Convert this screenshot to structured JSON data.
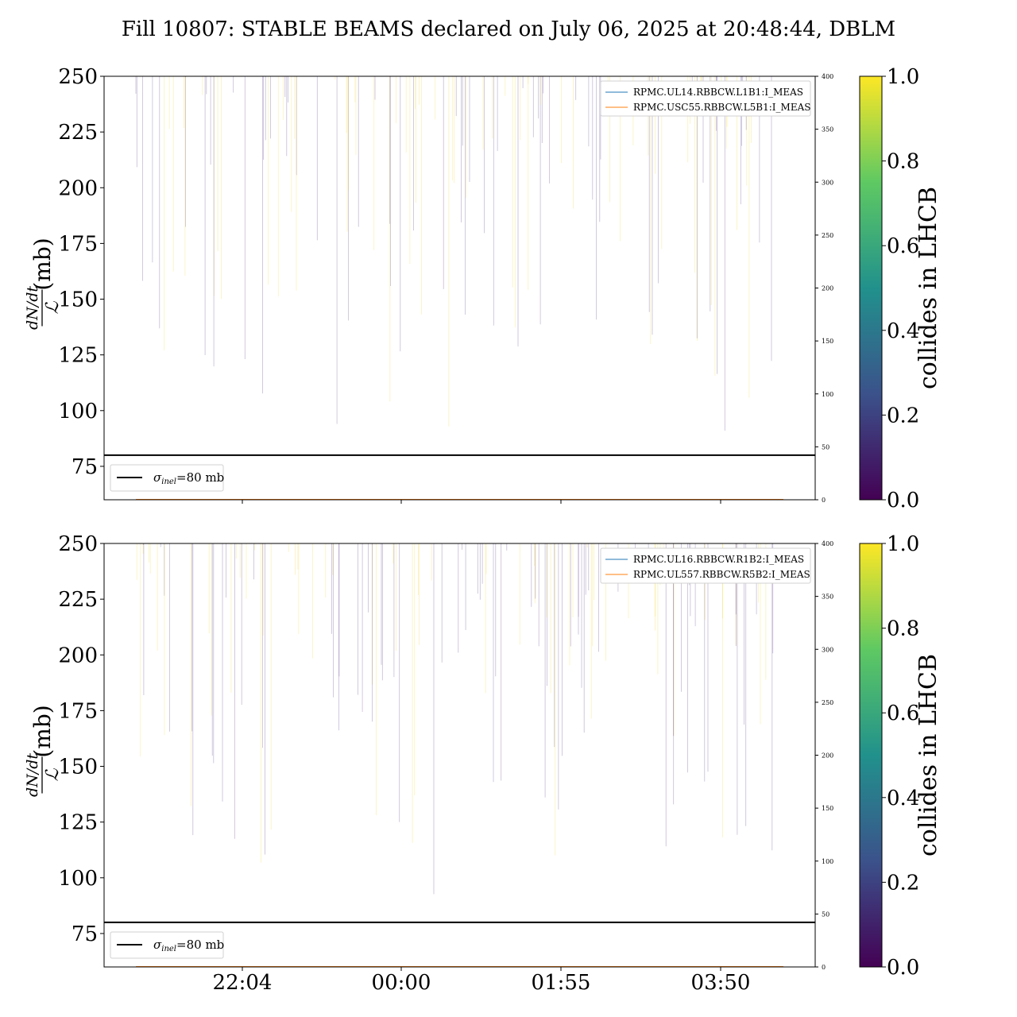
{
  "title": "Fill 10807: STABLE BEAMS declared on July 06, 2025 at 20:48:44, DBLM",
  "colors": {
    "line": "#000000",
    "series_1": "#1f77b4",
    "series_2": "#ff7f0e",
    "spike_purple": "#5b3f8c",
    "spike_yellow": "#f2d93b",
    "colormap": [
      "#440154",
      "#3b528b",
      "#21918c",
      "#5ec962",
      "#fde725"
    ]
  },
  "chart_data": [
    {
      "type": "line",
      "panel": "top",
      "ylabel_frac_num": "dN/dt",
      "ylabel_frac_den": "ℒ",
      "ylabel_unit": "(mb)",
      "ylim": [
        60,
        250
      ],
      "yticks": [
        "75",
        "100",
        "125",
        "150",
        "175",
        "200",
        "225",
        "250"
      ],
      "y2lim": [
        0,
        400
      ],
      "y2ticks": [
        "0",
        "50",
        "100",
        "150",
        "200",
        "250",
        "300",
        "350",
        "400"
      ],
      "xrange_hours": [
        20.8,
        4.8
      ],
      "xticks": [],
      "reference_line": {
        "y": 80,
        "legend_symbol": "σ",
        "legend_sub": "inel",
        "legend_value": "=80 mb"
      },
      "series": [
        {
          "name": "RPMC.UL14.RBBCW.L1B1:I_MEAS",
          "values": [
            0,
            0,
            0,
            0,
            0
          ]
        },
        {
          "name": "RPMC.USC55.RBBCW.L5B1:I_MEAS",
          "values": [
            0,
            0,
            0,
            0,
            0
          ]
        }
      ],
      "spikes": {
        "count": 140,
        "min_mb_range": [
          88,
          250
        ],
        "description_colors": "purple (colormap low) and yellow (colormap high)"
      },
      "grid": false,
      "legend_position": "top-right"
    },
    {
      "type": "line",
      "panel": "bottom",
      "ylabel_frac_num": "dN/dt",
      "ylabel_frac_den": "ℒ",
      "ylabel_unit": "(mb)",
      "ylim": [
        60,
        250
      ],
      "yticks": [
        "75",
        "100",
        "125",
        "150",
        "175",
        "200",
        "225",
        "250"
      ],
      "y2lim": [
        0,
        400
      ],
      "y2ticks": [
        "0",
        "50",
        "100",
        "150",
        "200",
        "250",
        "300",
        "350",
        "400"
      ],
      "xrange_hours": [
        20.8,
        4.8
      ],
      "xticks": [
        "22:04",
        "00:00",
        "01:55",
        "03:50"
      ],
      "reference_line": {
        "y": 80,
        "legend_symbol": "σ",
        "legend_sub": "inel",
        "legend_value": "=80 mb"
      },
      "series": [
        {
          "name": "RPMC.UL16.RBBCW.R1B2:I_MEAS",
          "values": [
            0,
            0,
            0,
            0,
            0
          ]
        },
        {
          "name": "RPMC.UL557.RBBCW.R5B2:I_MEAS",
          "values": [
            0,
            0,
            0,
            0,
            0
          ]
        }
      ],
      "spikes": {
        "count": 140,
        "min_mb_range": [
          90,
          250
        ],
        "description_colors": "purple (colormap low) and yellow (colormap high)"
      },
      "grid": false,
      "legend_position": "top-right"
    }
  ],
  "colorbars": [
    {
      "label": "collides in LHCB",
      "ticks": [
        "0.0",
        "0.2",
        "0.4",
        "0.6",
        "0.8",
        "1.0"
      ],
      "range": [
        0,
        1
      ]
    },
    {
      "label": "collides in LHCB",
      "ticks": [
        "0.0",
        "0.2",
        "0.4",
        "0.6",
        "0.8",
        "1.0"
      ],
      "range": [
        0,
        1
      ]
    }
  ]
}
